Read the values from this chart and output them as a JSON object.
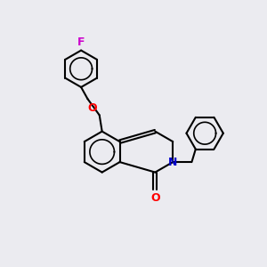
{
  "background_color": "#ebebf0",
  "bond_color": "#000000",
  "heteroatom_colors": {
    "O": "#ff0000",
    "N": "#0000cc",
    "F": "#cc00cc"
  },
  "line_width": 1.5,
  "figsize": [
    3.0,
    3.0
  ],
  "dpi": 100
}
